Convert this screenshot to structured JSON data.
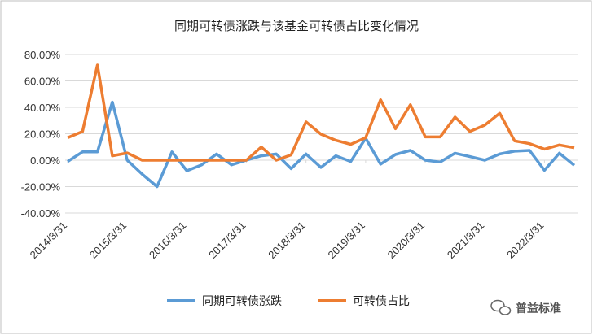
{
  "chart_data": {
    "type": "line",
    "title": "同期可转债涨跌与该基金可转债占比变化情况",
    "xlabel": "",
    "ylabel": "",
    "ylim": [
      -40,
      80
    ],
    "y_ticks": [
      "80.00%",
      "60.00%",
      "40.00%",
      "20.00%",
      "0.00%",
      "-20.00%",
      "-40.00%"
    ],
    "y_tick_values": [
      80,
      60,
      40,
      20,
      0,
      -20,
      -40
    ],
    "x_tick_labels": [
      "2014/3/31",
      "2015/3/31",
      "2016/3/31",
      "2017/3/31",
      "2018/3/31",
      "2019/3/31",
      "2020/3/31",
      "2021/3/31",
      "2022/3/31"
    ],
    "x_tick_indices": [
      0,
      4,
      8,
      12,
      16,
      20,
      24,
      28,
      32
    ],
    "point_count": 35,
    "grid": true,
    "legend_position": "bottom",
    "series": [
      {
        "name": "同期可转债涨跌",
        "color": "#5B9BD5",
        "values": [
          -1,
          6.3,
          6.3,
          44,
          0,
          -10.5,
          -20,
          6.3,
          -8,
          -3.5,
          4.7,
          -3.5,
          0,
          3.3,
          4.7,
          -6.4,
          4.7,
          -5.5,
          3.3,
          -1,
          16.6,
          -3,
          4.3,
          7.4,
          0,
          -1.4,
          5.3,
          2.7,
          0,
          4.7,
          6.8,
          7.4,
          -7.6,
          5.3,
          -3.9
        ]
      },
      {
        "name": "可转债占比",
        "color": "#ED7D31",
        "values": [
          17,
          21.7,
          72,
          3.3,
          5.5,
          0,
          0,
          0,
          0,
          0,
          0,
          0,
          0,
          10,
          0,
          4,
          29,
          19.7,
          15,
          12,
          17,
          45.7,
          23.8,
          42,
          17.6,
          17.6,
          32.6,
          21.7,
          26.5,
          35.5,
          14.6,
          12.5,
          8.4,
          11.5,
          9.4
        ]
      }
    ]
  },
  "watermark": {
    "text": "普益标准"
  }
}
